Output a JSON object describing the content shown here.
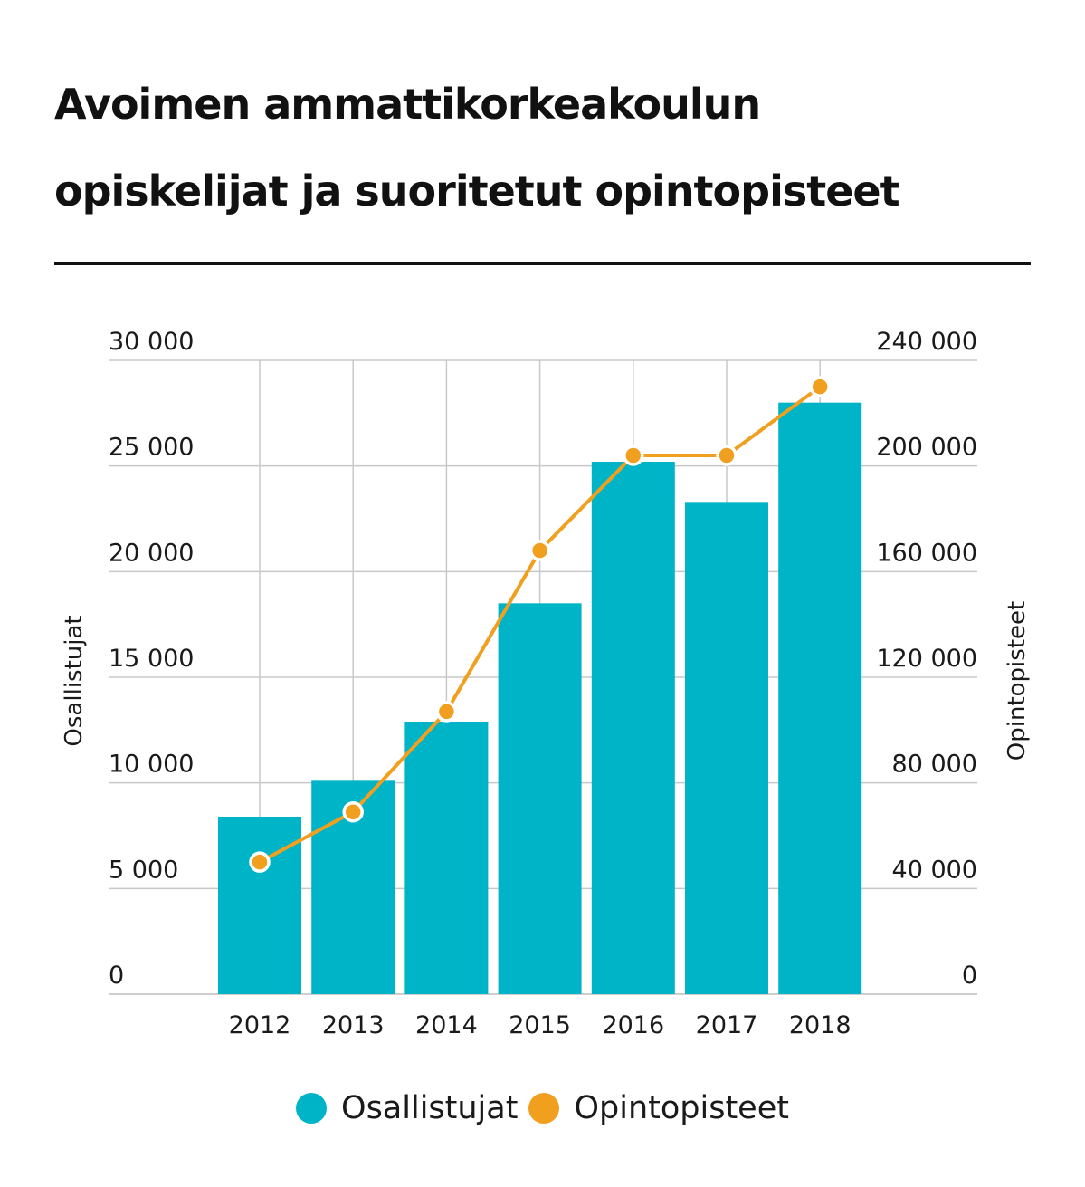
{
  "title_lines": [
    "Avoimen ammattikorkeakoulun",
    "opiskelijat ja suoritetut opintopisteet"
  ],
  "colors": {
    "bar": "#00b4c8",
    "line": "#f0a01e",
    "grid": "#c8c8c8",
    "text": "#1a1a1a"
  },
  "chart_data": {
    "type": "bar+line",
    "categories": [
      "2012",
      "2013",
      "2014",
      "2015",
      "2016",
      "2017",
      "2018"
    ],
    "series": [
      {
        "name": "Osallistujat",
        "type": "bar",
        "axis": "left",
        "values": [
          8400,
          10100,
          12900,
          18500,
          25200,
          23300,
          28000
        ]
      },
      {
        "name": "Opintopisteet",
        "type": "line",
        "axis": "right",
        "values": [
          50000,
          69000,
          107000,
          168000,
          204000,
          204000,
          230000
        ]
      }
    ],
    "y_left": {
      "label": "Osallistujat",
      "min": 0,
      "max": 30000,
      "ticks": [
        "0",
        "5 000",
        "10 000",
        "15 000",
        "20 000",
        "25 000",
        "30 000"
      ]
    },
    "y_right": {
      "label": "Opintopisteet",
      "min": 0,
      "max": 240000,
      "ticks": [
        "0",
        "40 000",
        "80 000",
        "120 000",
        "160 000",
        "200 000",
        "240 000"
      ]
    },
    "grid": true,
    "legend": {
      "placement": "bottom",
      "items": [
        "Osallistujat",
        "Opintopisteet"
      ]
    }
  }
}
